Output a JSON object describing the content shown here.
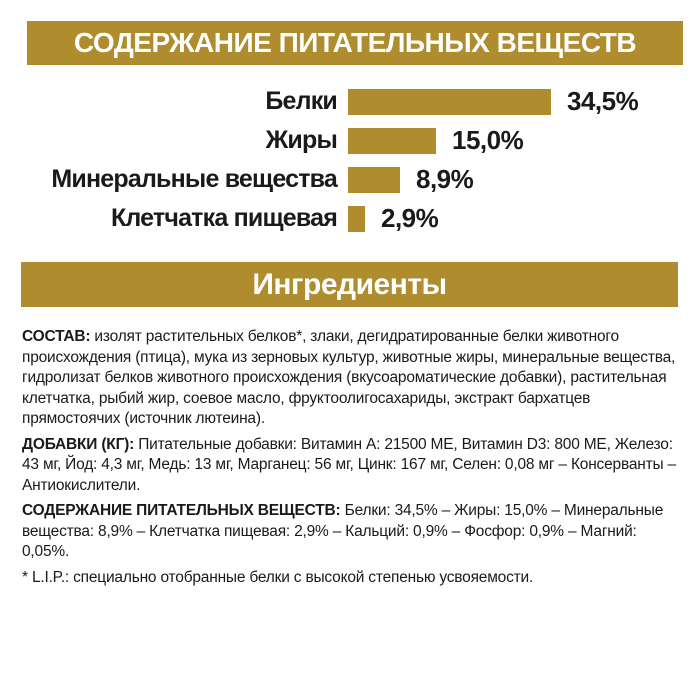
{
  "page": {
    "colors": {
      "accent": "#AF8C2D",
      "text": "#1A1A1A",
      "banner_text": "#FFFFFF",
      "background": "#FFFFFF"
    }
  },
  "header": {
    "title": "СОДЕРЖАНИЕ ПИТАТЕЛЬНЫХ ВЕЩЕСТВ"
  },
  "chart_data": {
    "type": "bar",
    "orientation": "horizontal",
    "title": "СОДЕРЖАНИЕ ПИТАТЕЛЬНЫХ ВЕЩЕСТВ",
    "categories": [
      "Белки",
      "Жиры",
      "Минеральные вещества",
      "Клетчатка пищевая"
    ],
    "values": [
      34.5,
      15.0,
      8.9,
      2.9
    ],
    "value_labels": [
      "34,5%",
      "15,0%",
      "8,9%",
      "2,9%"
    ],
    "unit": "%",
    "xlim": [
      0,
      35
    ],
    "grid": false,
    "legend": false,
    "bar_color": "#AF8C2D",
    "value_label_position": "right-of-bar"
  },
  "ingredients_header": {
    "title": "Ингредиенты"
  },
  "sections": {
    "composition": {
      "label": "СОСТАВ:",
      "text": "изолят растительных белков*, злаки, дегидратированные белки животного происхождения (птица), мука из зерновых культур, животные жиры, минеральные вещества, гидролизат белков животного происхождения (вкусоароматические добавки), растительная клетчатка, рыбий жир, соевое масло, фруктоолигосахариды, экстракт бархатцев прямостоячих (источник лютеина)."
    },
    "additives": {
      "label": "ДОБАВКИ (КГ):",
      "text": "Питательные добавки: Витамин A: 21500 МЕ, Витамин D3: 800 МЕ, Железо: 43 мг, Йод: 4,3 мг, Медь: 13 мг, Марганец: 56 мг, Цинк: 167 мг, Селен: 0,08 мг – Консерванты – Антиокислители."
    },
    "analysis": {
      "label": "СОДЕРЖАНИЕ ПИТАТЕЛЬНЫХ ВЕЩЕСТВ:",
      "text": "Белки: 34,5% – Жиры: 15,0% – Минеральные вещества: 8,9% – Клетчатка пищевая: 2,9% – Кальций: 0,9% – Фосфор: 0,9% – Магний: 0,05%."
    },
    "footnote": "* L.I.P.: специально отобранные белки с высокой степенью усвояемости."
  }
}
